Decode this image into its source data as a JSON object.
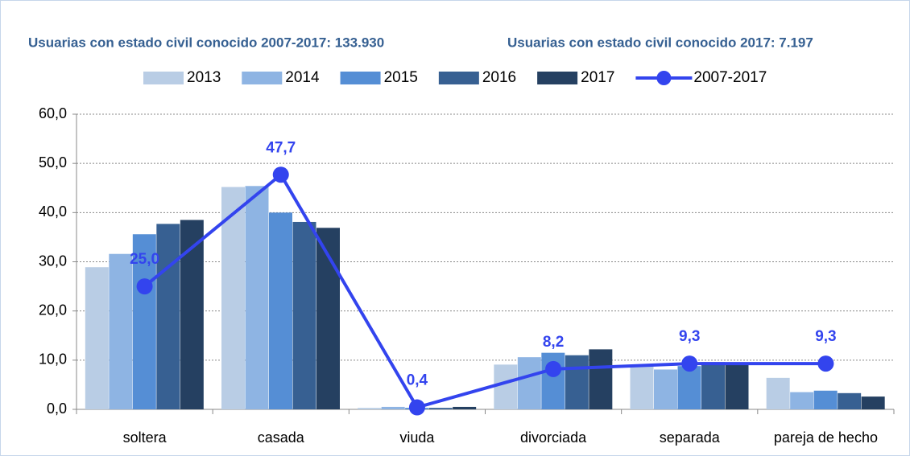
{
  "chart_data": {
    "type": "bar",
    "title": "Usuarias con estado civil conocido 2007-2017: 133.930",
    "subtitle": "Usuarias con estado civil conocido 2017: 7.197",
    "categories": [
      "soltera",
      "casada",
      "viuda",
      "divorciada",
      "separada",
      "pareja de hecho"
    ],
    "series": [
      {
        "name": "2013",
        "color": "#b9cde5",
        "values": [
          28.9,
          45.2,
          0.3,
          9.1,
          9.0,
          6.4
        ]
      },
      {
        "name": "2014",
        "color": "#8eb4e3",
        "values": [
          31.6,
          45.4,
          0.5,
          10.6,
          8.1,
          3.5
        ]
      },
      {
        "name": "2015",
        "color": "#558ed5",
        "values": [
          35.6,
          40.0,
          0.3,
          11.5,
          8.8,
          3.8
        ]
      },
      {
        "name": "2016",
        "color": "#376092",
        "values": [
          37.7,
          38.1,
          0.3,
          11.0,
          9.6,
          3.3
        ]
      },
      {
        "name": "2017",
        "color": "#254061",
        "values": [
          38.5,
          36.9,
          0.5,
          12.2,
          9.5,
          2.6
        ]
      },
      {
        "name": "2007-2017",
        "type": "line",
        "color": "#3344ee",
        "values": [
          25.0,
          47.7,
          0.4,
          8.2,
          9.3,
          9.3
        ],
        "value_labels": [
          "25,0",
          "47,7",
          "0,4",
          "8,2",
          "9,3",
          "9,3"
        ]
      }
    ],
    "ylim": [
      0,
      60
    ],
    "yticks": [
      {
        "value": 0,
        "label": "0,0"
      },
      {
        "value": 10,
        "label": "10,0"
      },
      {
        "value": 20,
        "label": "20,0"
      },
      {
        "value": 30,
        "label": "30,0"
      },
      {
        "value": 40,
        "label": "40,0"
      },
      {
        "value": 50,
        "label": "50,0"
      },
      {
        "value": 60,
        "label": "60,0"
      }
    ],
    "grid": true,
    "legend": "top"
  }
}
